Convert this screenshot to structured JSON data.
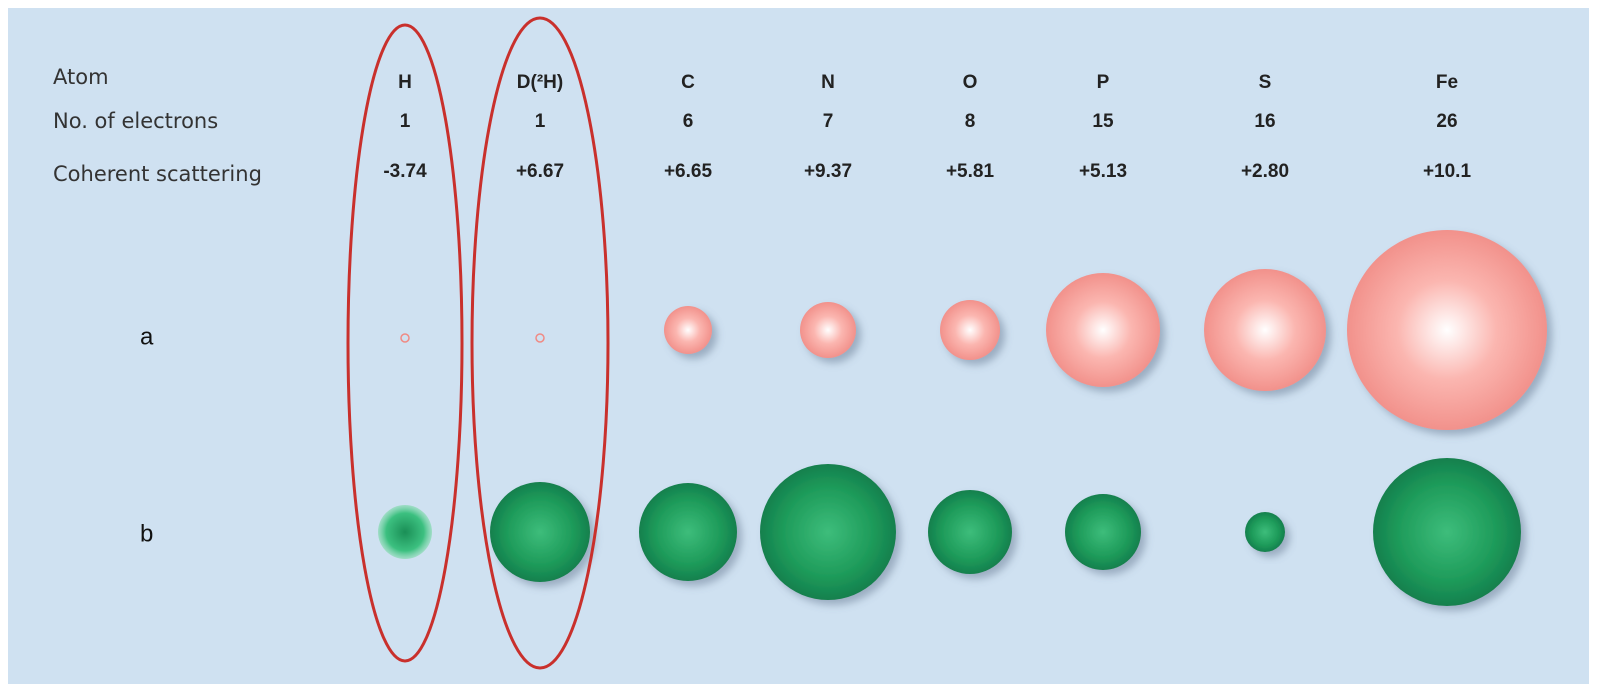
{
  "row_labels": [
    "Atom",
    "No. of electrons",
    "Coherent scattering"
  ],
  "sphere_rows": [
    "a",
    "b"
  ],
  "atoms": [
    {
      "symbol": "H",
      "electrons": 1,
      "scattering": "-3.74"
    },
    {
      "symbol": "D(²H)",
      "electrons": 1,
      "scattering": "+6.67"
    },
    {
      "symbol": "C",
      "electrons": 6,
      "scattering": "+6.65"
    },
    {
      "symbol": "N",
      "electrons": 7,
      "scattering": "+9.37"
    },
    {
      "symbol": "O",
      "electrons": 8,
      "scattering": "+5.81"
    },
    {
      "symbol": "P",
      "electrons": 15,
      "scattering": "+5.13"
    },
    {
      "symbol": "S",
      "electrons": 16,
      "scattering": "+2.80"
    },
    {
      "symbol": "Fe",
      "electrons": 26,
      "scattering": "+10.1"
    }
  ]
}
